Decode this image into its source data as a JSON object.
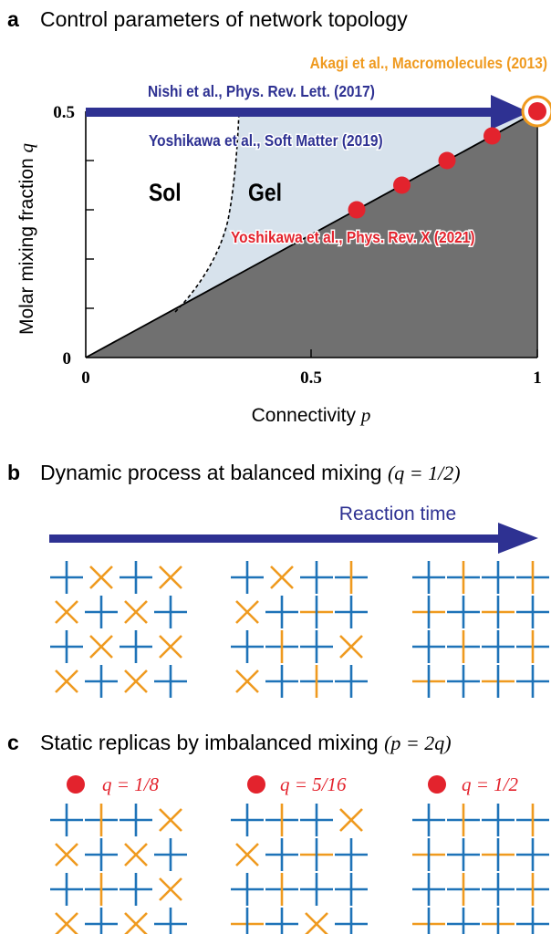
{
  "panel_a": {
    "letter": "a",
    "title": "Control parameters of network topology",
    "ylabel": "Molar mixing fraction",
    "ylabel_var": "q",
    "xlabel": "Connectivity",
    "xlabel_var": "p",
    "x_ticks": [
      "0",
      "0.5",
      "1"
    ],
    "y_ticks": [
      "0",
      "0.5"
    ],
    "region_sol": "Sol",
    "region_gel": "Gel",
    "ref_akagi": "Akagi et al., Macromolecules (2013)",
    "ref_nishi": "Nishi et al., Phys. Rev. Lett. (2017)",
    "ref_yoshikawa_2019": "Yoshikawa et al., Soft Matter (2019)",
    "ref_yoshikawa_2021": "Yoshikawa et al., Phys. Rev. X (2021)"
  },
  "chart_data": {
    "type": "scatter",
    "x_range": [
      0,
      1
    ],
    "y_range": [
      0,
      0.5
    ],
    "points": [
      {
        "p": 0.6,
        "q": 0.3
      },
      {
        "p": 0.7,
        "q": 0.35
      },
      {
        "p": 0.8,
        "q": 0.4
      },
      {
        "p": 0.9,
        "q": 0.45
      },
      {
        "p": 1.0,
        "q": 0.5
      }
    ],
    "diagonal": [
      [
        0,
        0
      ],
      [
        1,
        0.5
      ]
    ],
    "gel_boundary": [
      [
        0.2,
        0.1
      ],
      [
        0.25,
        0.19
      ],
      [
        0.3,
        0.33
      ],
      [
        0.335,
        0.5
      ]
    ],
    "colors": {
      "navy": "#2e3192",
      "red": "#e3232d",
      "orange": "#ef9a1f",
      "blue": "#1e73b8",
      "gel": "#d7e2ec",
      "dark": "#707070"
    }
  },
  "panel_b": {
    "letter": "b",
    "title": "Dynamic process at balanced mixing",
    "math": "(q = 1/2)",
    "arrow_label": "Reaction time",
    "grids": [
      [
        [
          "B",
          "X",
          "B",
          "X"
        ],
        [
          "X",
          "B",
          "X",
          "B"
        ],
        [
          "B",
          "X",
          "B",
          "X"
        ],
        [
          "X",
          "B",
          "X",
          "B"
        ]
      ],
      [
        [
          "B",
          "X",
          "B",
          "Dr"
        ],
        [
          "X",
          "B",
          "Dd",
          "B"
        ],
        [
          "B",
          "Dr",
          "B",
          "X"
        ],
        [
          "X",
          "B",
          "Dr",
          "B"
        ]
      ],
      [
        [
          "B",
          "Dr",
          "B",
          "Dr"
        ],
        [
          "Dd",
          "B",
          "Dd",
          "B"
        ],
        [
          "B",
          "Dr",
          "B",
          "Dr"
        ],
        [
          "Dd",
          "B",
          "Dd",
          "B"
        ]
      ]
    ]
  },
  "panel_c": {
    "letter": "c",
    "title": "Static replicas by imbalanced mixing",
    "math": "(p = 2q)",
    "replicas": [
      {
        "label": "q = 1/8"
      },
      {
        "label": "q = 5/16"
      },
      {
        "label": "q = 1/2"
      }
    ],
    "grids": [
      [
        [
          "B",
          "Dr",
          "B",
          "X"
        ],
        [
          "X",
          "B",
          "X",
          "B"
        ],
        [
          "B",
          "Dr",
          "B",
          "X"
        ],
        [
          "X",
          "B",
          "X",
          "B"
        ]
      ],
      [
        [
          "B",
          "Dr",
          "B",
          "X"
        ],
        [
          "X",
          "B",
          "Dd",
          "B"
        ],
        [
          "B",
          "Dr",
          "B",
          "B"
        ],
        [
          "Dd",
          "B",
          "X",
          "B"
        ]
      ],
      [
        [
          "B",
          "Dr",
          "B",
          "Dr"
        ],
        [
          "Dd",
          "B",
          "Dd",
          "B"
        ],
        [
          "B",
          "Dr",
          "B",
          "Dr"
        ],
        [
          "Dd",
          "B",
          "Dd",
          "B"
        ]
      ]
    ]
  }
}
